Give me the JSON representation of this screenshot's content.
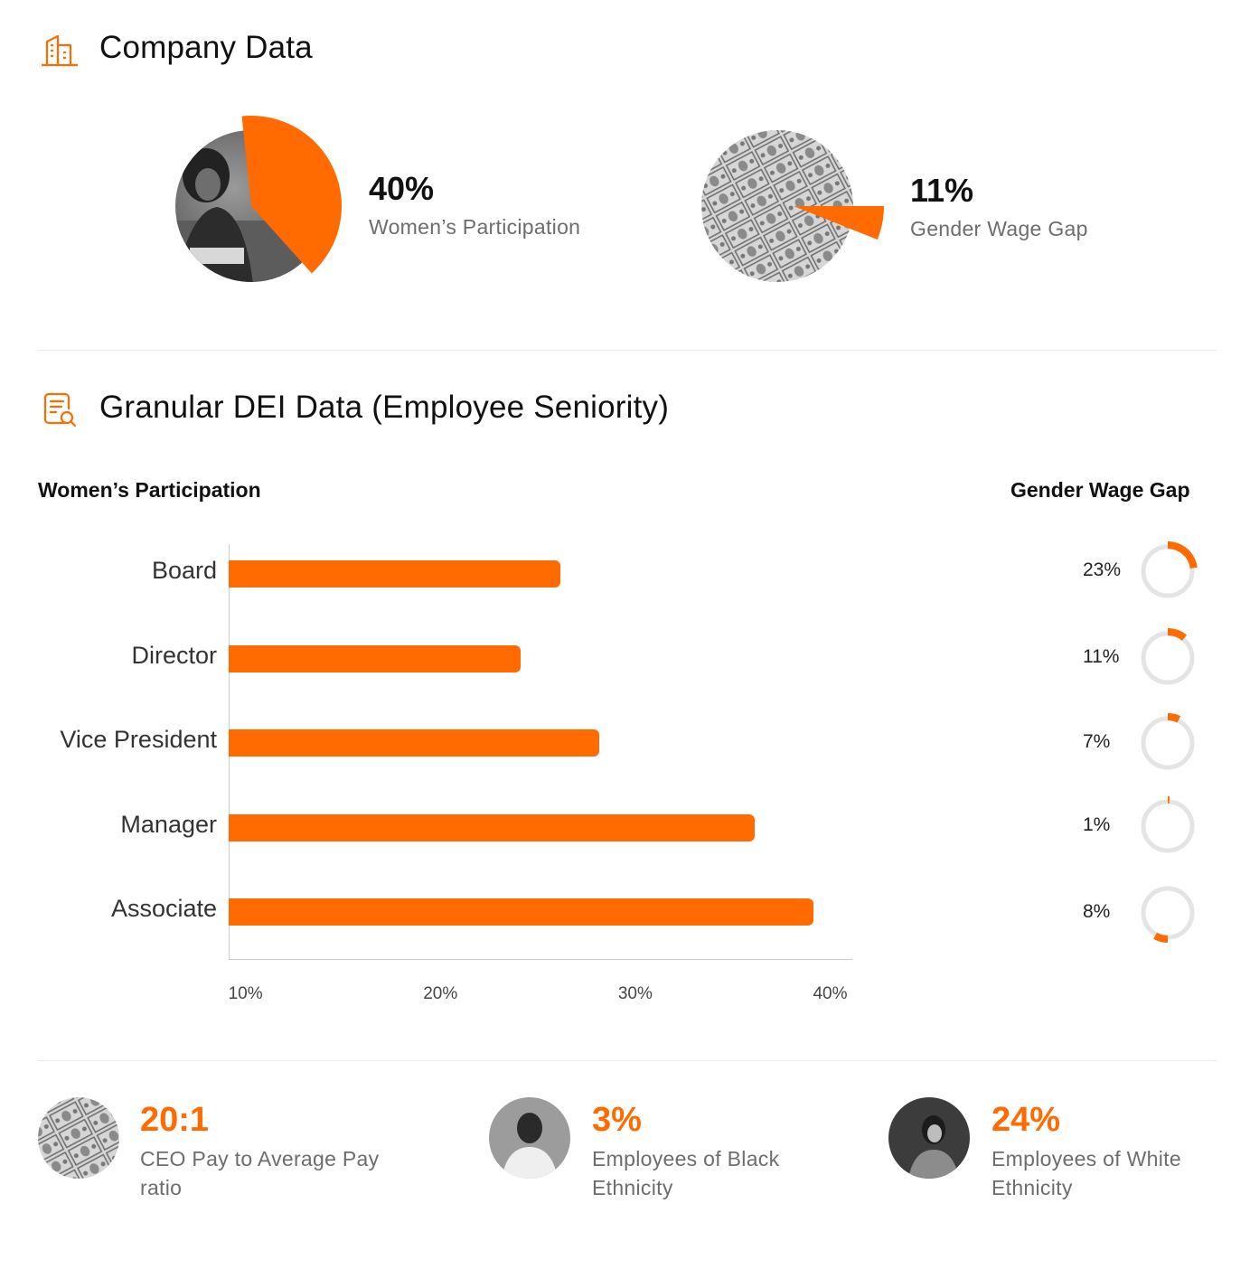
{
  "company_section": {
    "title": "Company Data",
    "icon": "building-icon",
    "accent_color": "#ff6b00",
    "metrics": [
      {
        "value": "40%",
        "label": "Women’s Participation",
        "fraction": 0.4
      },
      {
        "value": "11%",
        "label": "Gender Wage Gap",
        "fraction": 0.11
      }
    ]
  },
  "granular_section": {
    "title": "Granular DEI Data (Employee Seniority)",
    "icon": "report-search-icon",
    "left_heading": "Women’s Participation",
    "right_heading": "Gender Wage Gap"
  },
  "chart_data": [
    {
      "type": "bar",
      "orientation": "horizontal",
      "title": "Women’s Participation",
      "categories": [
        "Board",
        "Director",
        "Vice President",
        "Manager",
        "Associate"
      ],
      "values": [
        26,
        24,
        28,
        36,
        39
      ],
      "x_ticks": [
        "10%",
        "20%",
        "30%",
        "40%"
      ],
      "xlim": [
        9,
        41
      ],
      "bar_color": "#ff6b00",
      "grid": false
    },
    {
      "type": "pie",
      "title": "Gender Wage Gap",
      "categories": [
        "Board",
        "Director",
        "Vice President",
        "Manager",
        "Associate"
      ],
      "values": [
        23,
        11,
        7,
        1,
        8
      ],
      "labels": [
        "23%",
        "11%",
        "7%",
        "1%",
        "8%"
      ],
      "color": "#ff6b00",
      "track_color": "#e4e4e4"
    }
  ],
  "stats": [
    {
      "value": "20:1",
      "label_line1": "CEO Pay to Average Pay",
      "label_line2": "ratio",
      "avatar": "money-photo"
    },
    {
      "value": "3%",
      "label_line1": "Employees of Black",
      "label_line2": "Ethnicity",
      "avatar": "person-photo"
    },
    {
      "value": "24%",
      "label_line1": "Employees of White",
      "label_line2": "Ethnicity",
      "avatar": "person-photo"
    }
  ]
}
